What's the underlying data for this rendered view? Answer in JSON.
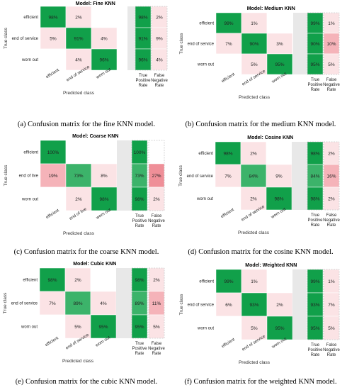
{
  "chart_data": [
    {
      "type": "heatmap",
      "title": "Model: Fine KNN",
      "caption": "(a) Confusion matrix for the fine KNN model.",
      "ylabel": "True class",
      "xlabel": "Predicted class",
      "rows": [
        "efficient",
        "end of service",
        "worn out"
      ],
      "cols": [
        "efficient",
        "end of service",
        "worn out"
      ],
      "values": [
        [
          98,
          2,
          null
        ],
        [
          5,
          91,
          4
        ],
        [
          null,
          4,
          96
        ]
      ],
      "tpr_label": "True Positive Rate",
      "fnr_label": "False Negative Rate",
      "tpr": [
        98,
        91,
        96
      ],
      "fnr": [
        2,
        9,
        4
      ]
    },
    {
      "type": "heatmap",
      "title": "Model: Medium KNN",
      "caption": "(b) Confusion matrix for the medium KNN model.",
      "ylabel": "True class",
      "xlabel": "Predicted class",
      "rows": [
        "efficient",
        "end of service",
        "worn out"
      ],
      "cols": [
        "efficient",
        "end of service",
        "worn out"
      ],
      "values": [
        [
          99,
          1,
          null
        ],
        [
          7,
          90,
          3
        ],
        [
          null,
          5,
          95
        ]
      ],
      "tpr_label": "True Positive Rate",
      "fnr_label": "False Negative Rate",
      "tpr": [
        99,
        90,
        95
      ],
      "fnr": [
        1,
        10,
        5
      ]
    },
    {
      "type": "heatmap",
      "title": "Model: Coarse KNN",
      "caption": "(c) Confusion matrix for the coarse KNN model.",
      "ylabel": "True class",
      "xlabel": "Predicted class",
      "rows": [
        "efficient",
        "end of live",
        "worn out"
      ],
      "cols": [
        "efficient",
        "end of live",
        "worn out"
      ],
      "values": [
        [
          100,
          null,
          null
        ],
        [
          19,
          73,
          8
        ],
        [
          null,
          2,
          98
        ]
      ],
      "tpr_label": "True Positive Rate",
      "fnr_label": "False Negative Rate",
      "tpr": [
        100,
        73,
        98
      ],
      "fnr": [
        null,
        27,
        2
      ]
    },
    {
      "type": "heatmap",
      "title": "Model: Cosine KNN",
      "caption": "(d) Confusion matrix for the cosine KNN model.",
      "ylabel": "True class",
      "xlabel": "Predicted class",
      "rows": [
        "efficient",
        "end of service",
        "worn out"
      ],
      "cols": [
        "efficient",
        "end of service",
        "worn out"
      ],
      "values": [
        [
          98,
          2,
          null
        ],
        [
          7,
          84,
          9
        ],
        [
          null,
          2,
          98
        ]
      ],
      "tpr_label": "True Positive Rate",
      "fnr_label": "False Negative Rate",
      "tpr": [
        98,
        84,
        98
      ],
      "fnr": [
        2,
        16,
        2
      ]
    },
    {
      "type": "heatmap",
      "title": "Model: Cubic KNN",
      "caption": "(e) Confusion matrix for the cubic KNN model.",
      "ylabel": "True class",
      "xlabel": "Predicted class",
      "rows": [
        "efficient",
        "end of service",
        "worn out"
      ],
      "cols": [
        "efficient",
        "end of service",
        "worn out"
      ],
      "values": [
        [
          98,
          2,
          null
        ],
        [
          7,
          89,
          4
        ],
        [
          null,
          5,
          95
        ]
      ],
      "tpr_label": "True Positive Rate",
      "fnr_label": "False Negative Rate",
      "tpr": [
        98,
        89,
        95
      ],
      "fnr": [
        2,
        11,
        5
      ]
    },
    {
      "type": "heatmap",
      "title": "Model: Weighted KNN",
      "caption": "(f) Confusion matrix for the weighted KNN model.",
      "ylabel": "True class",
      "xlabel": "Predicted class",
      "rows": [
        "efficient",
        "end of service",
        "worn out"
      ],
      "cols": [
        "efficient",
        "end of service",
        "worn out"
      ],
      "values": [
        [
          99,
          1,
          null
        ],
        [
          6,
          93,
          2
        ],
        [
          null,
          5,
          95
        ]
      ],
      "tpr_label": "True Positive Rate",
      "fnr_label": "False Negative Rate",
      "tpr": [
        99,
        93,
        95
      ],
      "fnr": [
        1,
        7,
        5
      ]
    }
  ],
  "colors": {
    "diag_strong": "#11a04a",
    "diag_mid": "#3cb36a",
    "off_light": "#fbe3e5",
    "off_mid": "#f5b3b9",
    "off_strong": "#ef8f98",
    "gap": "#e8e8e8"
  }
}
